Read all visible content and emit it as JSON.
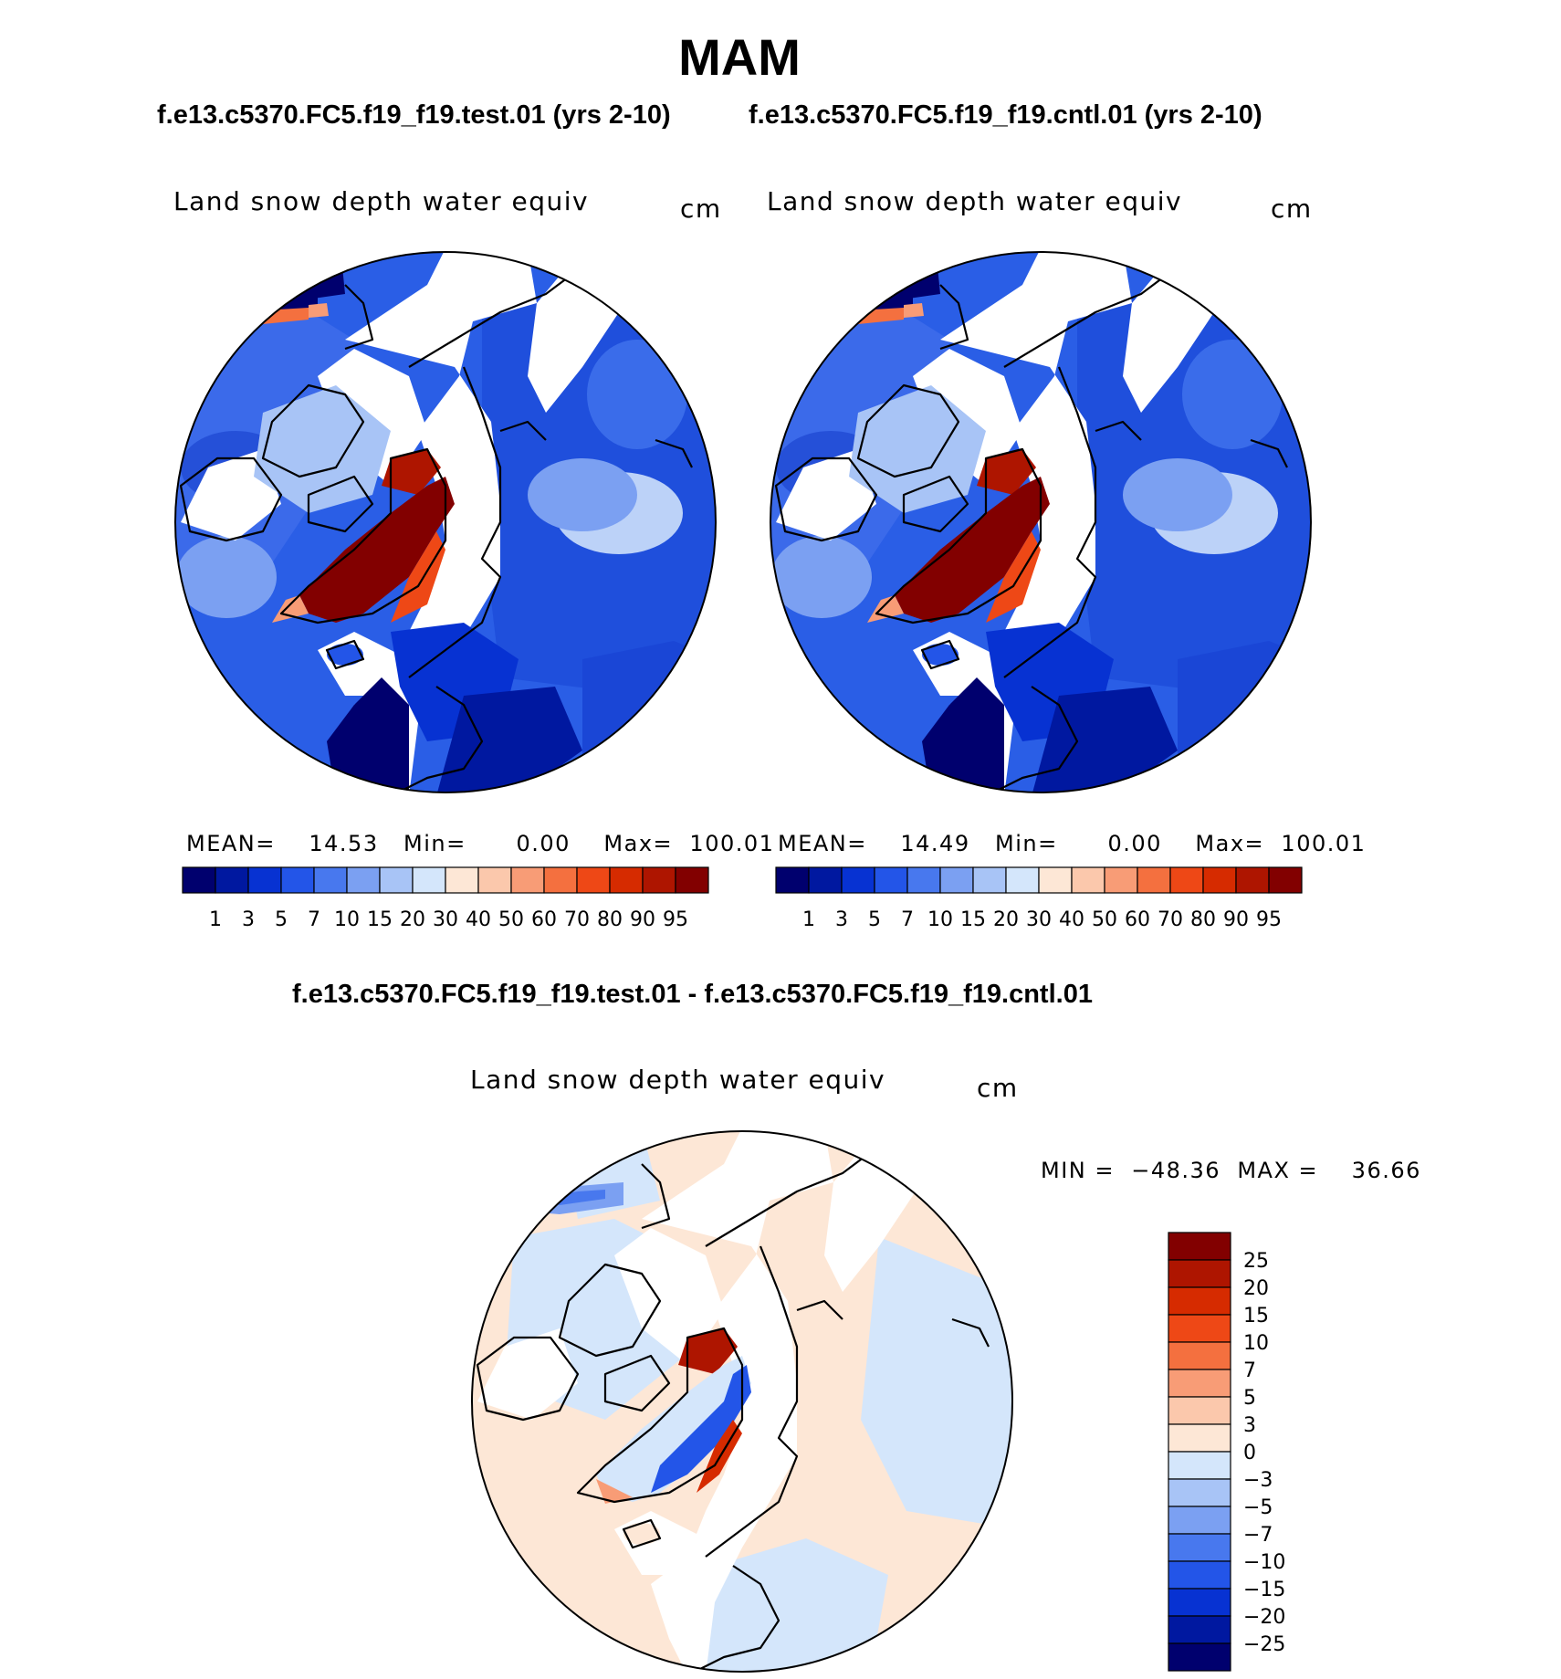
{
  "page": {
    "season_title": "MAM",
    "test_title": "f.e13.c5370.FC5.f19_f19.test.01 (yrs 2-10)",
    "cntl_title": "f.e13.c5370.FC5.f19_f19.cntl.01 (yrs 2-10)",
    "diff_title": "f.e13.c5370.FC5.f19_f19.test.01 - f.e13.c5370.FC5.f19_f19.cntl.01"
  },
  "panels": {
    "test": {
      "variable": "Land snow depth water equiv",
      "units": "cm",
      "stats": {
        "mean_label": "MEAN=",
        "mean": "14.53",
        "min_label": "Min=",
        "min": "0.00",
        "max_label": "Max=",
        "max": "100.01"
      }
    },
    "cntl": {
      "variable": "Land snow depth water equiv",
      "units": "cm",
      "stats": {
        "mean_label": "MEAN=",
        "mean": "14.49",
        "min_label": "Min=",
        "min": "0.00",
        "max_label": "Max=",
        "max": "100.01"
      }
    },
    "diff": {
      "variable": "Land snow depth water equiv",
      "units": "cm",
      "stats": {
        "min_label": "MIN =",
        "min": "−48.36",
        "max_label": "MAX =",
        "max": "36.66"
      }
    }
  },
  "colorbars": {
    "abs": {
      "labels": [
        "1",
        "3",
        "5",
        "7",
        "10",
        "15",
        "20",
        "30",
        "40",
        "50",
        "60",
        "70",
        "80",
        "90",
        "95"
      ],
      "colors": [
        "#00006e",
        "#0018a0",
        "#0732d2",
        "#2355e8",
        "#4878ee",
        "#7ba0f2",
        "#a8c4f6",
        "#d4e6fb",
        "#fde7d6",
        "#fbc8ac",
        "#f89c76",
        "#f4703f",
        "#ee4816",
        "#d62b00",
        "#ae1500",
        "#820000"
      ]
    },
    "diff": {
      "labels": [
        "25",
        "20",
        "15",
        "10",
        "7",
        "5",
        "3",
        "0",
        "−3",
        "−5",
        "−7",
        "−10",
        "−15",
        "−20",
        "−25"
      ],
      "colors": [
        "#820000",
        "#ae1500",
        "#d62b00",
        "#ee4816",
        "#f4703f",
        "#f89c76",
        "#fbc8ac",
        "#fde7d6",
        "#d4e6fb",
        "#a8c4f6",
        "#7ba0f2",
        "#4878ee",
        "#2355e8",
        "#0732d2",
        "#0018a0",
        "#00006e"
      ]
    }
  }
}
